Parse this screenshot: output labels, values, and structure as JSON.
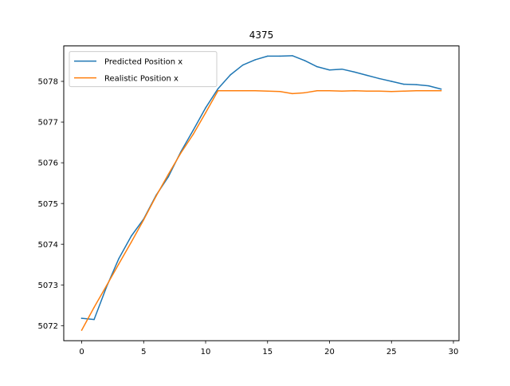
{
  "chart_data": {
    "type": "line",
    "title": "4375",
    "xlabel": "",
    "ylabel": "",
    "xlim": [
      -1.45,
      30.45
    ],
    "ylim": [
      5071.63,
      5078.87
    ],
    "xticks": [
      0,
      5,
      10,
      15,
      20,
      25,
      30
    ],
    "yticks": [
      5072,
      5073,
      5074,
      5075,
      5076,
      5077,
      5078
    ],
    "grid": false,
    "legend_position": "upper left",
    "x": [
      0,
      1,
      2,
      3,
      4,
      5,
      6,
      7,
      8,
      9,
      10,
      11,
      12,
      13,
      14,
      15,
      16,
      17,
      18,
      19,
      20,
      21,
      22,
      23,
      24,
      25,
      26,
      27,
      28,
      29
    ],
    "series": [
      {
        "name": "Predicted Position x",
        "color": "#1f77b4",
        "values": [
          5072.18,
          5072.15,
          5072.95,
          5073.65,
          5074.2,
          5074.62,
          5075.2,
          5075.66,
          5076.27,
          5076.8,
          5077.35,
          5077.82,
          5078.16,
          5078.4,
          5078.53,
          5078.62,
          5078.62,
          5078.63,
          5078.51,
          5078.36,
          5078.28,
          5078.3,
          5078.23,
          5078.15,
          5078.07,
          5078.0,
          5077.93,
          5077.92,
          5077.89,
          5077.81
        ]
      },
      {
        "name": "Realistic Position x",
        "color": "#ff7f0e",
        "values": [
          5071.89,
          5072.45,
          5072.98,
          5073.52,
          5074.05,
          5074.6,
          5075.18,
          5075.72,
          5076.24,
          5076.7,
          5077.23,
          5077.77,
          5077.77,
          5077.77,
          5077.77,
          5077.76,
          5077.75,
          5077.7,
          5077.72,
          5077.77,
          5077.77,
          5077.76,
          5077.77,
          5077.76,
          5077.76,
          5077.75,
          5077.76,
          5077.77,
          5077.77,
          5077.77
        ]
      }
    ]
  }
}
